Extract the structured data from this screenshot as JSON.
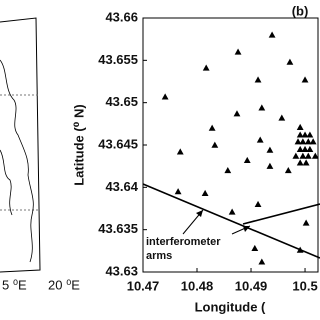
{
  "map_labels": [
    "5 ⁰E",
    "20 ⁰E"
  ],
  "chart_data": {
    "type": "scatter",
    "title": "(b)",
    "x_label": "Longitude (",
    "y_label": "Latitude (⁰ N)",
    "annotations": [
      "interferometer",
      "arms"
    ],
    "marker": "triangle",
    "color": "#000000",
    "xlim": [
      10.47,
      10.5024
    ],
    "ylim": [
      43.63,
      43.66
    ],
    "xticks": [
      10.47,
      10.48,
      10.49,
      10.5
    ],
    "yticks": [
      43.63,
      43.635,
      43.64,
      43.645,
      43.65,
      43.655,
      43.66
    ],
    "x": [
      10.4939,
      10.4876,
      10.4972,
      10.4817,
      10.4913,
      10.5,
      10.4741,
      10.492,
      10.4874,
      10.4957,
      10.4828,
      10.4991,
      10.4769,
      10.4833,
      10.4935,
      10.4893,
      10.4857,
      10.4935,
      10.4917,
      10.4969,
      10.4815,
      10.4765,
      10.4865,
      10.4913,
      10.4907,
      10.492,
      10.4991,
      10.5002,
      10.4991,
      10.5,
      10.5009,
      10.4987,
      10.4996,
      10.5006,
      10.5015,
      10.4991,
      10.5,
      10.5009,
      10.4983,
      10.4996,
      10.5006,
      10.5019,
      10.4991,
      10.5002
    ],
    "y": [
      43.658,
      43.656,
      43.6548,
      43.6541,
      43.6527,
      43.6527,
      43.6507,
      43.6494,
      43.6487,
      43.6482,
      43.647,
      43.6471,
      43.6442,
      43.645,
      43.6444,
      43.6432,
      43.642,
      43.6425,
      43.6456,
      43.642,
      43.6393,
      43.6395,
      43.6371,
      43.638,
      43.6328,
      43.6312,
      43.6326,
      43.6358,
      43.6462,
      43.6462,
      43.6462,
      43.6454,
      43.6454,
      43.6454,
      43.6454,
      43.6445,
      43.6445,
      43.6445,
      43.6437,
      43.6437,
      43.6437,
      43.6437,
      43.6429,
      43.6429
    ]
  }
}
